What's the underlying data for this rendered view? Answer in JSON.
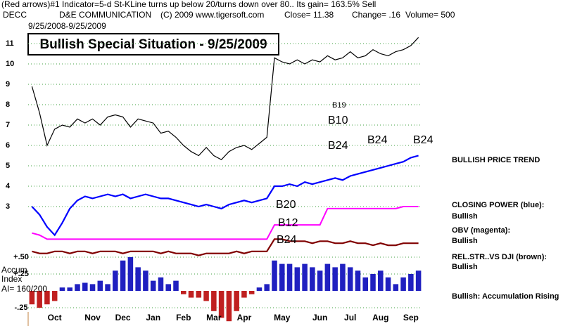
{
  "header": {
    "line1": "(Red arrows)#1 Indicator=5-d St-KLine turns up below 20/turns down over 80.. Its gain= 163.5% Sell",
    "ticker": "DECC",
    "company": "D&E COMMUNICATION",
    "copyright": "(C) 2009 www.tigersoft.com",
    "close": "Close=  11.38",
    "change": "Change= .16",
    "volume": "Volume= 500",
    "date_range": "9/25/2008-9/25/2009"
  },
  "side_labels": [
    "BULLISH PRICE TREND",
    "CLOSING POWER (blue):",
    "Bullish",
    "OBV (magenta):",
    "Bullish",
    "REL.STR..VS DJI (brown):",
    "Bullish",
    "Bullish: Accumulation Rising"
  ],
  "accum_labels": [
    "Accum",
    "Index",
    "AI= 160/200"
  ],
  "chart_data": {
    "type": "line",
    "title": "Bullish Special Situation - 9/25/2009",
    "categories": [
      null,
      null,
      null,
      "Oct",
      null,
      null,
      null,
      null,
      "Nov",
      null,
      null,
      null,
      "Dec",
      null,
      null,
      null,
      "Jan",
      null,
      null,
      null,
      "Feb",
      null,
      null,
      null,
      "Mar",
      null,
      null,
      null,
      "Apr",
      null,
      null,
      null,
      null,
      "May",
      null,
      null,
      null,
      null,
      "Jun",
      null,
      null,
      null,
      "Jul",
      null,
      null,
      null,
      "Aug",
      null,
      null,
      null,
      "Sep",
      null
    ],
    "series": [
      {
        "name": "Price",
        "color": "#000000",
        "values": [
          8.9,
          7.6,
          6.0,
          6.8,
          7.0,
          6.9,
          7.3,
          7.1,
          7.3,
          7.0,
          7.4,
          7.5,
          7.4,
          6.9,
          7.3,
          7.2,
          7.1,
          6.6,
          6.7,
          6.4,
          6.0,
          5.7,
          5.5,
          5.9,
          5.5,
          5.3,
          5.7,
          5.9,
          6.0,
          5.8,
          6.1,
          6.4,
          10.3,
          10.1,
          10.0,
          10.2,
          10.0,
          10.2,
          10.1,
          10.4,
          10.2,
          10.3,
          10.6,
          10.3,
          10.4,
          10.7,
          10.5,
          10.4,
          10.6,
          10.7,
          10.9,
          11.3
        ]
      },
      {
        "name": "CLOSING POWER",
        "color": "#0000ff",
        "values": [
          3.0,
          2.6,
          2.0,
          1.6,
          2.2,
          2.9,
          3.3,
          3.5,
          3.4,
          3.5,
          3.6,
          3.5,
          3.6,
          3.4,
          3.5,
          3.6,
          3.5,
          3.4,
          3.4,
          3.3,
          3.2,
          3.1,
          3.0,
          3.1,
          3.0,
          2.9,
          3.1,
          3.2,
          3.3,
          3.2,
          3.3,
          3.4,
          4.0,
          4.0,
          4.1,
          4.0,
          4.2,
          4.1,
          4.2,
          4.3,
          4.4,
          4.3,
          4.5,
          4.6,
          4.7,
          4.8,
          4.9,
          5.0,
          5.1,
          5.2,
          5.4,
          5.5
        ]
      },
      {
        "name": "OBV",
        "color": "#ff00ff",
        "values": [
          1.7,
          1.6,
          1.4,
          1.4,
          1.4,
          1.4,
          1.4,
          1.4,
          1.4,
          1.4,
          1.4,
          1.4,
          1.4,
          1.4,
          1.4,
          1.4,
          1.4,
          1.4,
          1.4,
          1.4,
          1.4,
          1.4,
          1.4,
          1.4,
          1.4,
          1.4,
          1.4,
          1.4,
          1.4,
          1.4,
          1.4,
          1.4,
          2.1,
          2.1,
          2.1,
          2.1,
          2.1,
          2.1,
          2.1,
          2.9,
          2.9,
          2.9,
          2.9,
          2.9,
          2.9,
          2.9,
          2.9,
          2.9,
          2.9,
          3.0,
          3.0,
          3.0
        ]
      },
      {
        "name": "REL.STR..VS DJI",
        "color": "#800000",
        "values": [
          0.8,
          0.7,
          0.7,
          0.8,
          0.8,
          0.7,
          0.8,
          0.8,
          0.7,
          0.8,
          0.8,
          0.8,
          0.7,
          0.8,
          0.8,
          0.8,
          0.8,
          0.7,
          0.8,
          0.7,
          0.7,
          0.7,
          0.6,
          0.7,
          0.7,
          0.7,
          0.7,
          0.8,
          0.7,
          0.8,
          0.8,
          0.8,
          1.4,
          1.4,
          1.3,
          1.3,
          1.3,
          1.2,
          1.3,
          1.3,
          1.2,
          1.2,
          1.3,
          1.2,
          1.2,
          1.1,
          1.2,
          1.1,
          1.1,
          1.2,
          1.2,
          1.2
        ]
      },
      {
        "name": "Accum Index",
        "type": "bar",
        "axis": "y2",
        "color": "#2020c0",
        "negative_color": "#c02020",
        "values": [
          -0.2,
          -0.25,
          -0.2,
          -0.15,
          0.05,
          0.05,
          0.1,
          0.12,
          0.1,
          0.15,
          0.1,
          0.3,
          0.45,
          0.5,
          0.35,
          0.3,
          0.15,
          0.2,
          0.1,
          0.15,
          -0.05,
          -0.1,
          -0.1,
          -0.15,
          -0.3,
          -0.4,
          -0.45,
          -0.3,
          -0.1,
          -0.05,
          0.05,
          0.1,
          0.45,
          0.4,
          0.4,
          0.35,
          0.4,
          0.35,
          0.3,
          0.4,
          0.35,
          0.4,
          0.35,
          0.3,
          0.2,
          0.25,
          0.3,
          0.2,
          0.1,
          0.2,
          0.25,
          0.3
        ]
      }
    ],
    "ylim": [
      0,
      13
    ],
    "yticks": [
      3,
      4,
      5,
      6,
      7,
      8,
      9,
      10,
      11
    ],
    "y2lim": [
      -0.5,
      0.5
    ],
    "y2ticks": [
      {
        "value": 0.5,
        "label": "+.50"
      },
      {
        "value": 0.25,
        "label": "+.25"
      },
      {
        "value": -0.25,
        "label": "-.25"
      }
    ],
    "grid": true,
    "annotations": [
      "B10",
      "B24",
      "B24",
      "B24",
      "B20",
      "B12",
      "B24",
      "B19"
    ]
  }
}
